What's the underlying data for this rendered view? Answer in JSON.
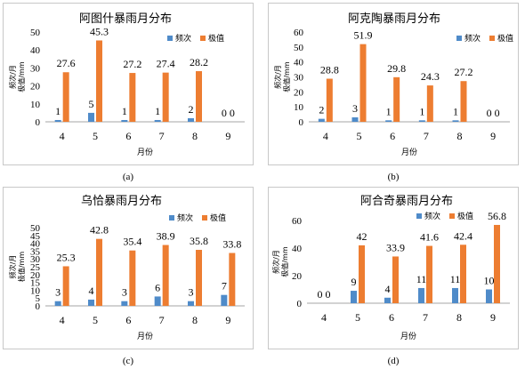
{
  "colors": {
    "frequency": "#4F8BC9",
    "extreme": "#ED7D31",
    "axis": "#a6a6a6",
    "text": "#000000"
  },
  "chart_data": [
    {
      "type": "bar",
      "caption": "(a)",
      "title": "阿图什暴雨月分布",
      "xlabel": "月份",
      "ylabel_line1": "频次/月",
      "ylabel_line2": "极值/mm",
      "ylim": [
        0,
        50
      ],
      "yticks": [
        "0",
        "10",
        "20",
        "30",
        "40",
        "50"
      ],
      "legend_position": "top-right",
      "categories": [
        "4",
        "5",
        "6",
        "7",
        "8",
        "9"
      ],
      "series": [
        {
          "name": "频次",
          "values": [
            1,
            5,
            1,
            1,
            2,
            0
          ],
          "labels": [
            "1",
            "5",
            "1",
            "1",
            "2",
            "0"
          ]
        },
        {
          "name": "极值",
          "values": [
            27.6,
            45.3,
            27.2,
            27.4,
            28.2,
            0
          ],
          "labels": [
            "27.6",
            "45.3",
            "27.2",
            "27.4",
            "28.2",
            "0"
          ]
        }
      ]
    },
    {
      "type": "bar",
      "caption": "(b)",
      "title": "阿克陶暴雨月分布",
      "xlabel": "月份",
      "ylabel_line1": "频次/月",
      "ylabel_line2": "极值/mm",
      "ylim": [
        0,
        60
      ],
      "yticks": [
        "0",
        "10",
        "20",
        "30",
        "40",
        "50",
        "60"
      ],
      "legend_position": "top-right",
      "categories": [
        "4",
        "5",
        "6",
        "7",
        "8",
        "9"
      ],
      "series": [
        {
          "name": "频次",
          "values": [
            2,
            3,
            1,
            1,
            1,
            0
          ],
          "labels": [
            "2",
            "3",
            "1",
            "1",
            "1",
            "0"
          ]
        },
        {
          "name": "极值",
          "values": [
            28.8,
            51.9,
            29.8,
            24.3,
            27.2,
            0
          ],
          "labels": [
            "28.8",
            "51.9",
            "29.8",
            "24.3",
            "27.2",
            "0"
          ]
        }
      ]
    },
    {
      "type": "bar",
      "caption": "(c)",
      "title": "乌恰暴雨月分布",
      "xlabel": "月份",
      "ylabel_line1": "频次/月",
      "ylabel_line2": "极值/mm",
      "ylim": [
        0,
        50
      ],
      "yticks": [
        "0",
        "5",
        "10",
        "15",
        "20",
        "25",
        "30",
        "35",
        "40",
        "45",
        "50"
      ],
      "legend_position": "top-right",
      "categories": [
        "4",
        "5",
        "6",
        "7",
        "8",
        "9"
      ],
      "series": [
        {
          "name": "频次",
          "values": [
            3,
            4,
            3,
            6,
            3,
            7
          ],
          "labels": [
            "3",
            "4",
            "3",
            "6",
            "3",
            "7"
          ]
        },
        {
          "name": "极值",
          "values": [
            25.3,
            42.8,
            35.4,
            38.9,
            35.8,
            33.8
          ],
          "labels": [
            "25.3",
            "42.8",
            "35.4",
            "38.9",
            "35.8",
            "33.8"
          ]
        }
      ]
    },
    {
      "type": "bar",
      "caption": "(d)",
      "title": "阿合奇暴雨月分布",
      "xlabel": "月份",
      "ylabel_line1": "频次/月",
      "ylabel_line2": "极值/mm",
      "ylim": [
        0,
        60
      ],
      "yticks": [
        "0",
        "20",
        "40",
        "60"
      ],
      "legend_position": "top-center",
      "categories": [
        "4",
        "5",
        "6",
        "7",
        "8",
        "9"
      ],
      "series": [
        {
          "name": "频次",
          "values": [
            0,
            9,
            4,
            11,
            11,
            10
          ],
          "labels": [
            "0",
            "9",
            "4",
            "11",
            "11",
            "10"
          ]
        },
        {
          "name": "极值",
          "values": [
            0,
            42,
            33.9,
            41.6,
            42.4,
            56.8
          ],
          "labels": [
            "0",
            "42",
            "33.9",
            "41.6",
            "42.4",
            "56.8"
          ]
        }
      ]
    }
  ]
}
